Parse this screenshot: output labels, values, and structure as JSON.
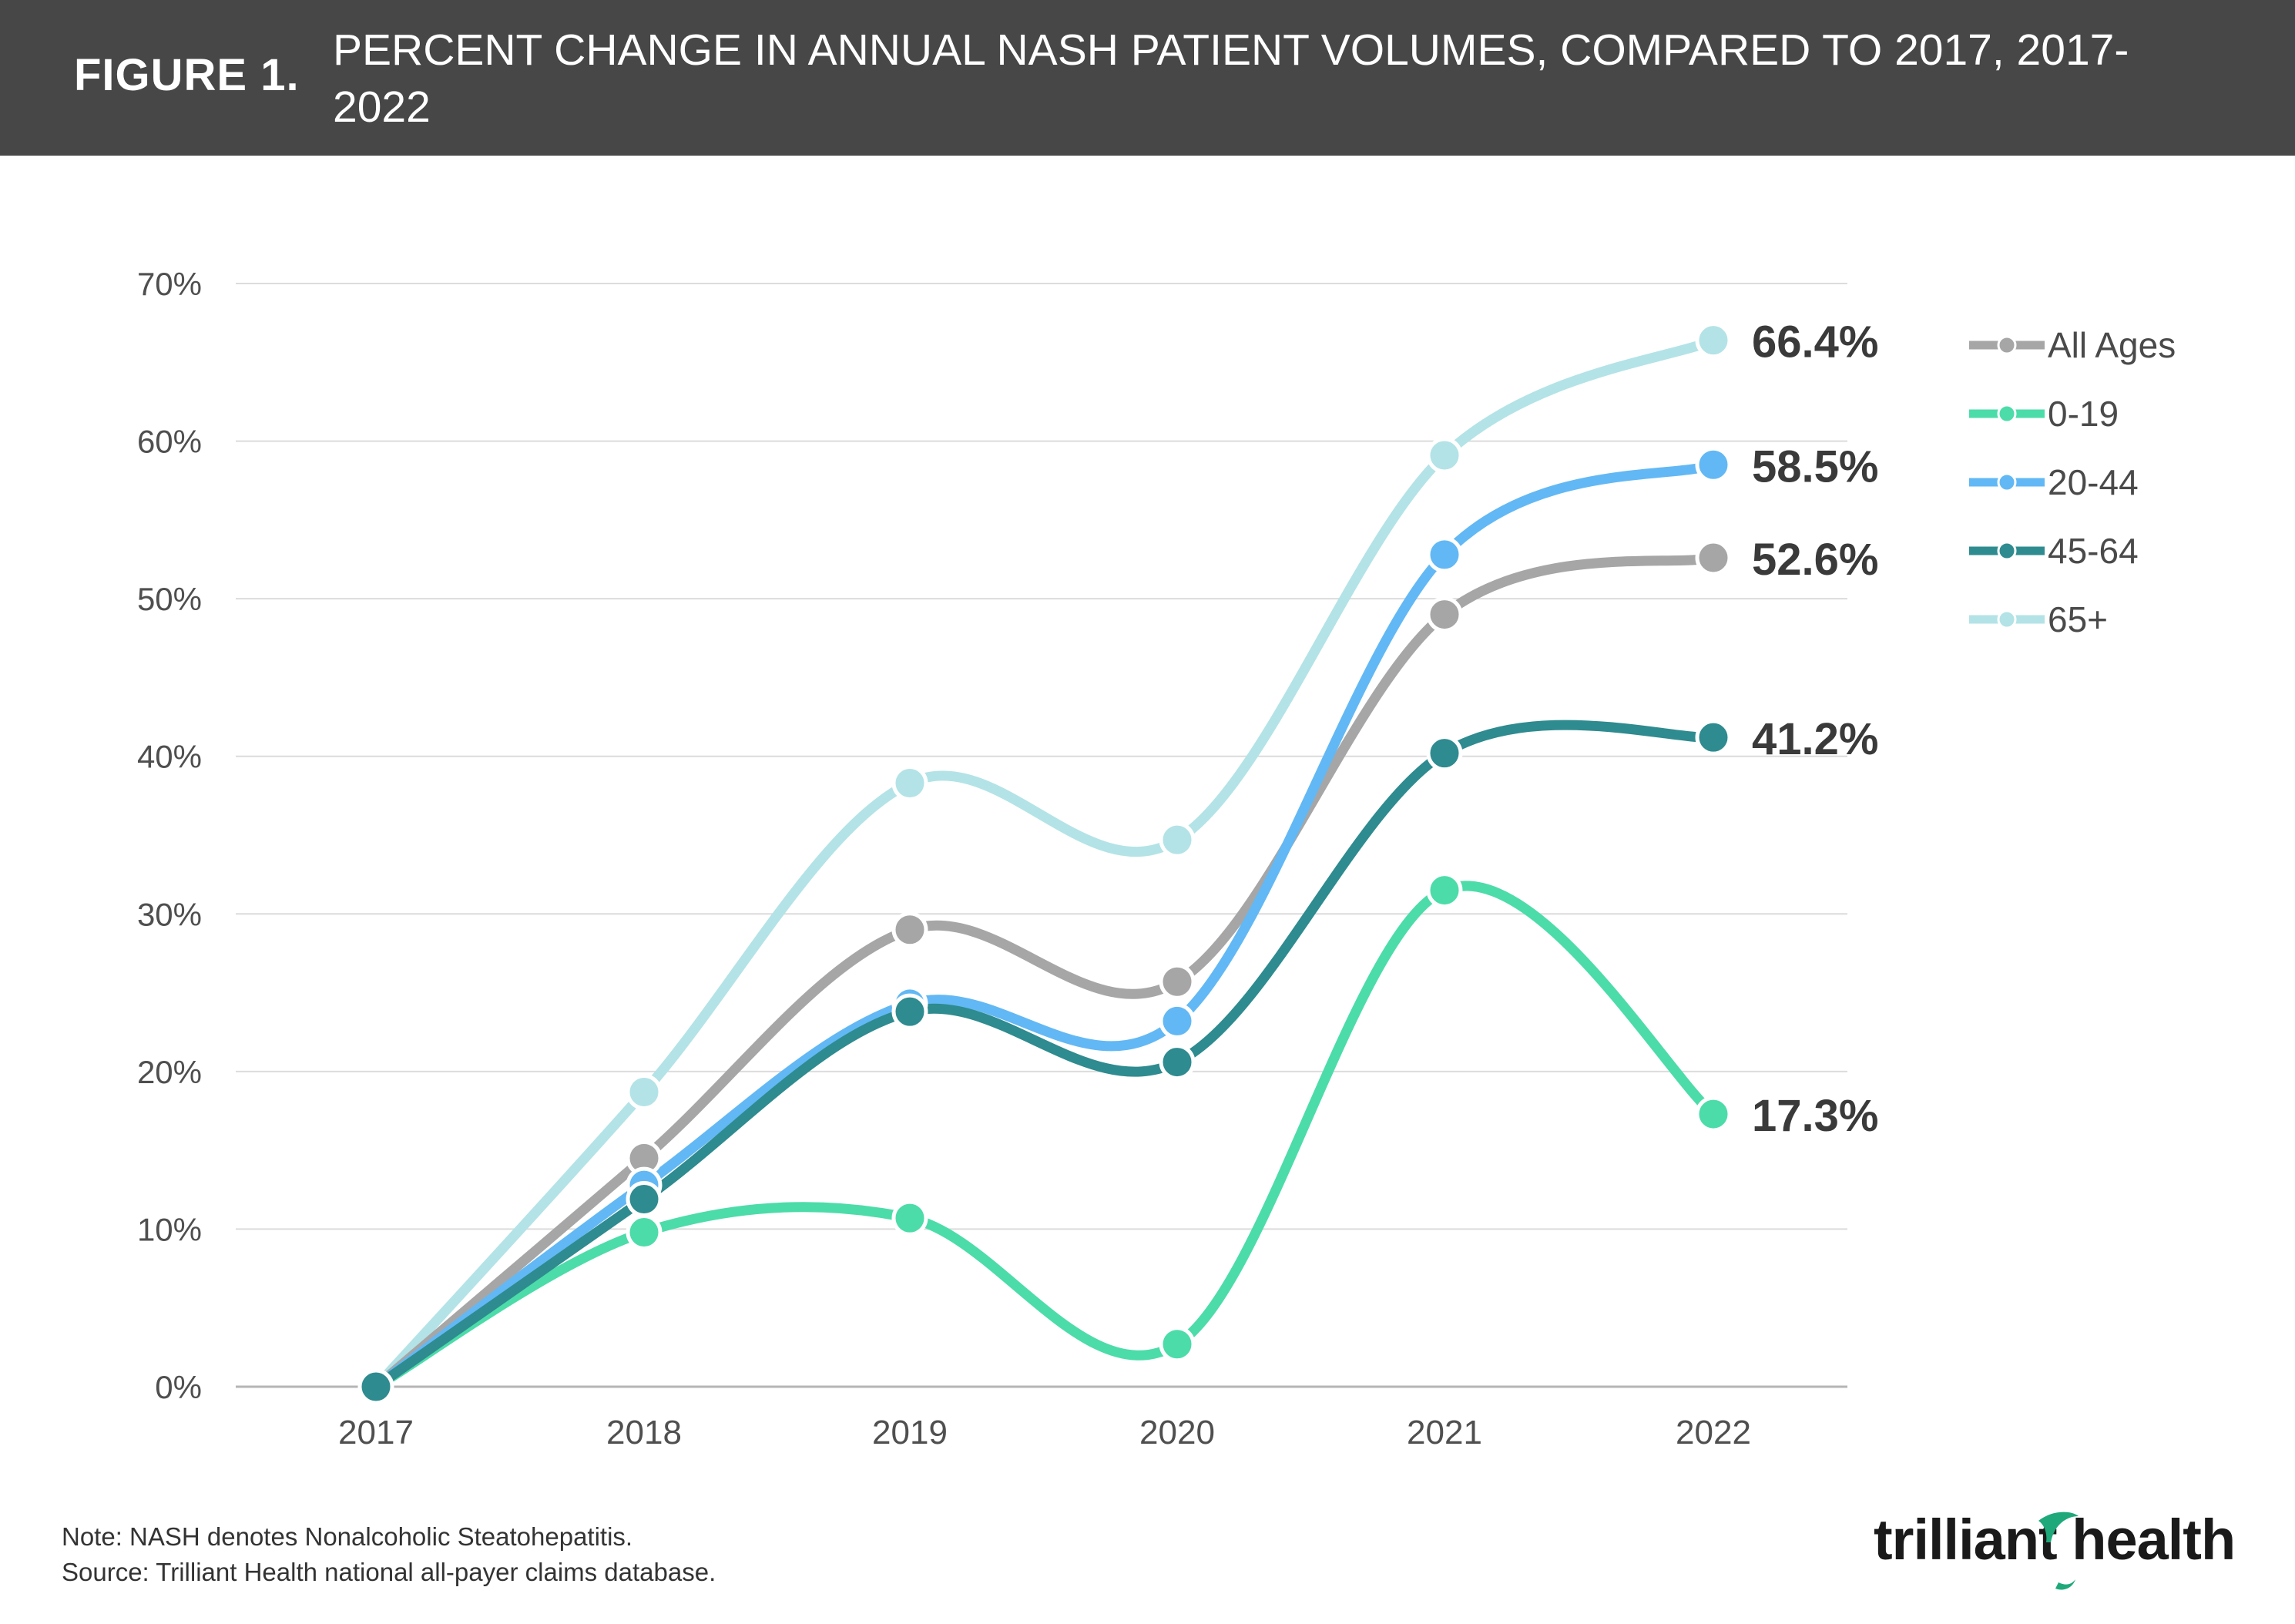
{
  "header": {
    "figure_label": "FIGURE 1.",
    "title": "PERCENT CHANGE IN ANNUAL NASH PATIENT VOLUMES, COMPARED TO 2017, 2017-2022"
  },
  "chart_data": {
    "type": "line",
    "categories": [
      "2017",
      "2018",
      "2019",
      "2020",
      "2021",
      "2022"
    ],
    "y_ticks": [
      "0%",
      "10%",
      "20%",
      "30%",
      "40%",
      "50%",
      "60%",
      "70%"
    ],
    "ylim": [
      0,
      70
    ],
    "grid": true,
    "legend_position": "right",
    "series": [
      {
        "name": "All Ages",
        "color": "#a6a6a6",
        "values": [
          0,
          14.5,
          29.0,
          25.7,
          49.0,
          52.6
        ],
        "end_label": "52.6%"
      },
      {
        "name": "0-19",
        "color": "#4cdca9",
        "values": [
          0,
          9.8,
          10.7,
          2.7,
          31.5,
          17.3
        ],
        "end_label": "17.3%"
      },
      {
        "name": "20-44",
        "color": "#62b8f4",
        "values": [
          0,
          12.8,
          24.3,
          23.2,
          52.8,
          58.5
        ],
        "end_label": "58.5%"
      },
      {
        "name": "45-64",
        "color": "#2e8b8f",
        "values": [
          0,
          11.9,
          23.8,
          20.6,
          40.2,
          41.2
        ],
        "end_label": "41.2%"
      },
      {
        "name": "65+",
        "color": "#b3e3e6",
        "values": [
          0,
          18.7,
          38.3,
          34.7,
          59.1,
          66.4
        ],
        "end_label": "66.4%"
      }
    ]
  },
  "footer": {
    "note": "Note: NASH denotes Nonalcoholic Steatohepatitis.",
    "source": "Source: Trilliant Health national all-payer claims database.",
    "brand": "trilliant health"
  }
}
